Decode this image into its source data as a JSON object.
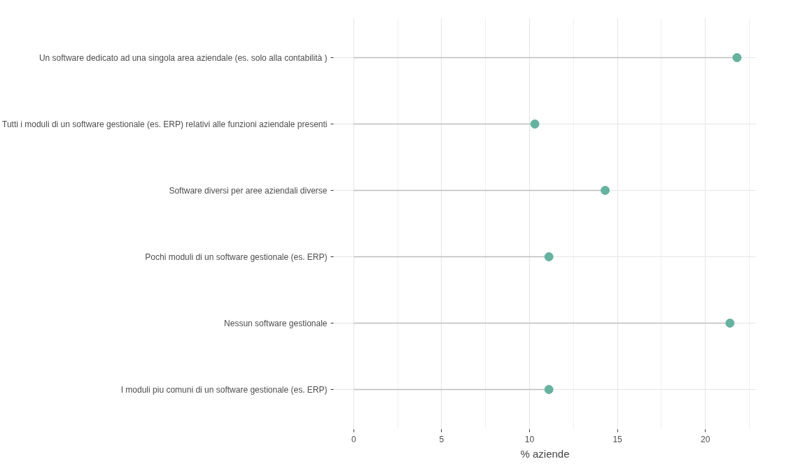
{
  "chart_data": {
    "type": "lollipop",
    "orientation": "horizontal",
    "xlabel": "% aziende",
    "categories": [
      "Un software dedicato ad una singola area aziendale (es. solo alla contabilità )",
      "Tutti i moduli di un software gestionale (es. ERP) relativi alle funzioni aziendale presenti",
      "Software diversi per aree aziendali diverse",
      "Pochi moduli di un software gestionale (es. ERP)",
      "Nessun software gestionale",
      "I moduli piu comuni di un software gestionale (es. ERP)"
    ],
    "values": [
      21.8,
      10.3,
      14.3,
      11.1,
      21.4,
      11.1
    ],
    "color": "#66b2a0",
    "xlim": [
      -1.15,
      22.9
    ],
    "xticks": [
      0,
      5,
      10,
      15,
      20
    ],
    "grid": true,
    "marker": "circle"
  }
}
